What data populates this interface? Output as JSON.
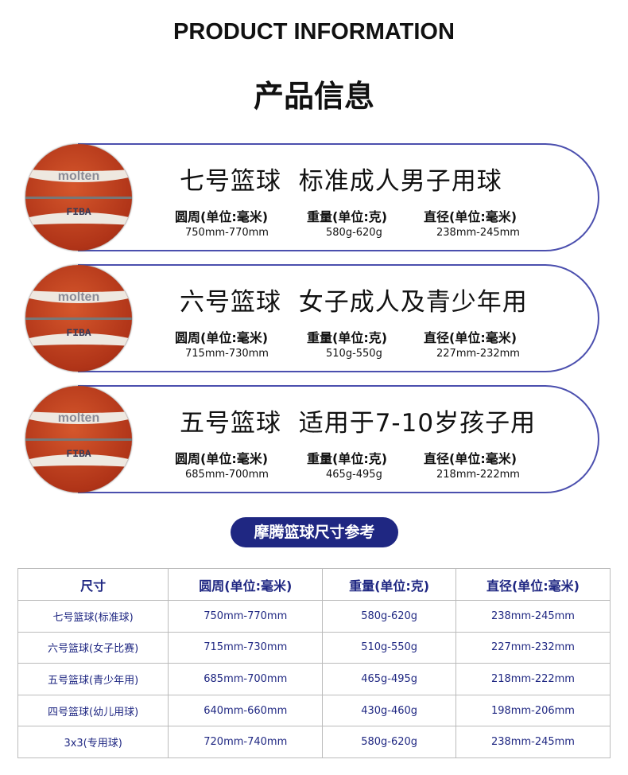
{
  "header": {
    "en_title": "PRODUCT INFORMATION",
    "cn_title": "产品信息"
  },
  "ball": {
    "brand": "molten",
    "mark": "FIBA"
  },
  "cards": [
    {
      "title": "七号篮球  标准成人男子用球",
      "labels": [
        "圆周(单位:毫米)",
        "重量(单位:克)",
        "直径(单位:毫米)"
      ],
      "values": [
        "750mm-770mm",
        "580g-620g",
        "238mm-245mm"
      ]
    },
    {
      "title": "六号篮球  女子成人及青少年用",
      "labels": [
        "圆周(单位:毫米)",
        "重量(单位:克)",
        "直径(单位:毫米)"
      ],
      "values": [
        "715mm-730mm",
        "510g-550g",
        "227mm-232mm"
      ]
    },
    {
      "title": "五号篮球  适用于7-10岁孩子用",
      "labels": [
        "圆周(单位:毫米)",
        "重量(单位:克)",
        "直径(单位:毫米)"
      ],
      "values": [
        "685mm-700mm",
        "465g-495g",
        "218mm-222mm"
      ]
    }
  ],
  "section": {
    "title": "摩腾篮球尺寸参考"
  },
  "table": {
    "headers": [
      "尺寸",
      "圆周(单位:毫米)",
      "重量(单位:克)",
      "直径(单位:毫米)"
    ],
    "rows": [
      [
        "七号篮球(标准球)",
        "750mm-770mm",
        "580g-620g",
        "238mm-245mm"
      ],
      [
        "六号篮球(女子比赛)",
        "715mm-730mm",
        "510g-550g",
        "227mm-232mm"
      ],
      [
        "五号篮球(青少年用)",
        "685mm-700mm",
        "465g-495g",
        "218mm-222mm"
      ],
      [
        "四号篮球(幼儿用球)",
        "640mm-660mm",
        "430g-460g",
        "198mm-206mm"
      ],
      [
        "3x3(专用球)",
        "720mm-740mm",
        "580g-620g",
        "238mm-245mm"
      ]
    ]
  },
  "colors": {
    "accent": "#1f2782",
    "card_border": "#4b4fae"
  }
}
